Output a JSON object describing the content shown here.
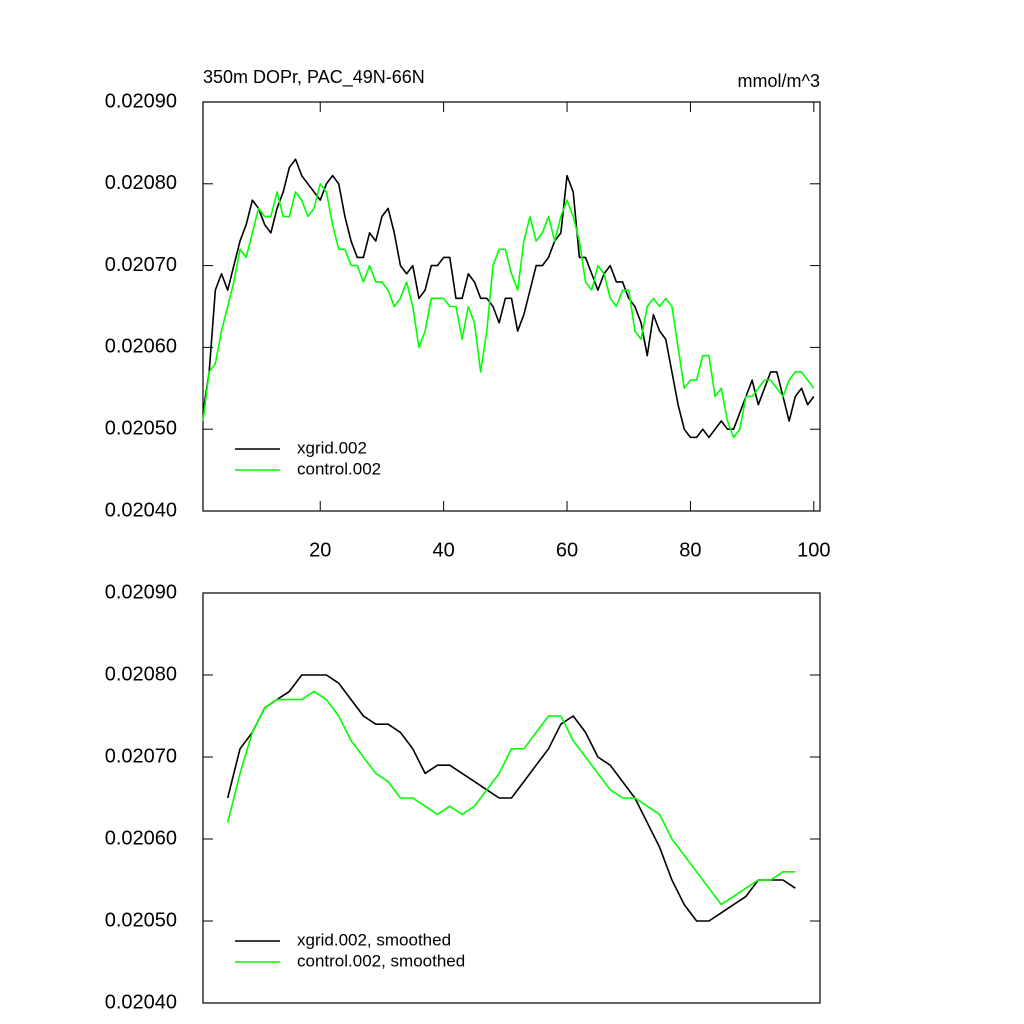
{
  "chart_data": [
    {
      "type": "line",
      "title": "350m DOPr, PAC_49N-66N",
      "units": "mmol/m^3",
      "x": [
        1,
        2,
        3,
        4,
        5,
        6,
        7,
        8,
        9,
        10,
        11,
        12,
        13,
        14,
        15,
        16,
        17,
        18,
        19,
        20,
        21,
        22,
        23,
        24,
        25,
        26,
        27,
        28,
        29,
        30,
        31,
        32,
        33,
        34,
        35,
        36,
        37,
        38,
        39,
        40,
        41,
        42,
        43,
        44,
        45,
        46,
        47,
        48,
        49,
        50,
        51,
        52,
        53,
        54,
        55,
        56,
        57,
        58,
        59,
        60,
        61,
        62,
        63,
        64,
        65,
        66,
        67,
        68,
        69,
        70,
        71,
        72,
        73,
        74,
        75,
        76,
        77,
        78,
        79,
        80,
        81,
        82,
        83,
        84,
        85,
        86,
        87,
        88,
        89,
        90,
        91,
        92,
        93,
        94,
        95,
        96,
        97,
        98,
        99,
        100
      ],
      "series": [
        {
          "name": "xgrid.002",
          "color": "#000000",
          "values": [
            0.02052,
            0.02057,
            0.02067,
            0.02069,
            0.02067,
            0.0207,
            0.02073,
            0.02075,
            0.02078,
            0.02077,
            0.02075,
            0.02074,
            0.02077,
            0.02079,
            0.02082,
            0.02083,
            0.02081,
            0.0208,
            0.02079,
            0.02078,
            0.0208,
            0.02081,
            0.0208,
            0.02076,
            0.02073,
            0.02071,
            0.02071,
            0.02074,
            0.02073,
            0.02076,
            0.02077,
            0.02074,
            0.0207,
            0.02069,
            0.0207,
            0.02066,
            0.02067,
            0.0207,
            0.0207,
            0.02071,
            0.02071,
            0.02066,
            0.02066,
            0.02069,
            0.02068,
            0.02066,
            0.02066,
            0.02065,
            0.02063,
            0.02066,
            0.02066,
            0.02062,
            0.02064,
            0.02067,
            0.0207,
            0.0207,
            0.02071,
            0.02073,
            0.02074,
            0.02081,
            0.02079,
            0.02071,
            0.02071,
            0.02069,
            0.02067,
            0.02069,
            0.0207,
            0.02068,
            0.02068,
            0.02066,
            0.02065,
            0.02063,
            0.02059,
            0.02064,
            0.02062,
            0.02061,
            0.02057,
            0.02053,
            0.0205,
            0.02049,
            0.02049,
            0.0205,
            0.02049,
            0.0205,
            0.02051,
            0.0205,
            0.0205,
            0.02052,
            0.02054,
            0.02056,
            0.02053,
            0.02055,
            0.02057,
            0.02057,
            0.02054,
            0.02051,
            0.02054,
            0.02055,
            0.02053,
            0.02054
          ]
        },
        {
          "name": "control.002",
          "color": "#00ff00",
          "values": [
            0.02051,
            0.02057,
            0.02058,
            0.02062,
            0.02065,
            0.02068,
            0.02072,
            0.02071,
            0.02074,
            0.02077,
            0.02076,
            0.02076,
            0.02079,
            0.02076,
            0.02076,
            0.02079,
            0.02078,
            0.02076,
            0.02077,
            0.0208,
            0.02079,
            0.02075,
            0.02072,
            0.02072,
            0.0207,
            0.0207,
            0.02068,
            0.0207,
            0.02068,
            0.02068,
            0.02067,
            0.02065,
            0.02066,
            0.02068,
            0.02065,
            0.0206,
            0.02062,
            0.02066,
            0.02066,
            0.02066,
            0.02065,
            0.02065,
            0.02061,
            0.02065,
            0.02063,
            0.02057,
            0.02062,
            0.0207,
            0.02072,
            0.02072,
            0.02069,
            0.02067,
            0.02073,
            0.02076,
            0.02073,
            0.02074,
            0.02076,
            0.02073,
            0.02076,
            0.02078,
            0.02076,
            0.02073,
            0.02068,
            0.02067,
            0.0207,
            0.02069,
            0.02066,
            0.02065,
            0.02067,
            0.02067,
            0.02062,
            0.02061,
            0.02065,
            0.02066,
            0.02065,
            0.02066,
            0.02065,
            0.0206,
            0.02055,
            0.02056,
            0.02056,
            0.02059,
            0.02059,
            0.02054,
            0.02055,
            0.02051,
            0.02049,
            0.0205,
            0.02054,
            0.02054,
            0.02055,
            0.02056,
            0.02056,
            0.02055,
            0.02054,
            0.02056,
            0.02057,
            0.02057,
            0.02056,
            0.02055
          ]
        }
      ],
      "xlim": [
        1,
        101
      ],
      "ylim": [
        0.0204,
        0.0209
      ],
      "xticks": [
        20,
        40,
        60,
        80,
        100
      ],
      "yticks": [
        {
          "value": 0.0204,
          "label": "0.02040"
        },
        {
          "value": 0.0205,
          "label": "0.02050"
        },
        {
          "value": 0.0206,
          "label": "0.02060"
        },
        {
          "value": 0.0207,
          "label": "0.02070"
        },
        {
          "value": 0.0208,
          "label": "0.02080"
        },
        {
          "value": 0.0209,
          "label": "0.02090"
        }
      ],
      "legend": "lower left"
    },
    {
      "type": "line",
      "x": [
        5,
        7,
        9,
        11,
        13,
        15,
        17,
        19,
        21,
        23,
        25,
        27,
        29,
        31,
        33,
        35,
        37,
        39,
        41,
        43,
        45,
        47,
        49,
        51,
        53,
        55,
        57,
        59,
        61,
        63,
        65,
        67,
        69,
        71,
        73,
        75,
        77,
        79,
        81,
        83,
        85,
        87,
        89,
        91,
        93,
        95,
        97
      ],
      "series": [
        {
          "name": "xgrid.002, smoothed",
          "color": "#000000",
          "values": [
            0.02065,
            0.02071,
            0.02073,
            0.02076,
            0.02077,
            0.02078,
            0.0208,
            0.0208,
            0.0208,
            0.02079,
            0.02077,
            0.02075,
            0.02074,
            0.02074,
            0.02073,
            0.02071,
            0.02068,
            0.02069,
            0.02069,
            0.02068,
            0.02067,
            0.02066,
            0.02065,
            0.02065,
            0.02067,
            0.02069,
            0.02071,
            0.02074,
            0.02075,
            0.02073,
            0.0207,
            0.02069,
            0.02067,
            0.02065,
            0.02062,
            0.02059,
            0.02055,
            0.02052,
            0.0205,
            0.0205,
            0.02051,
            0.02052,
            0.02053,
            0.02055,
            0.02055,
            0.02055,
            0.02054
          ]
        },
        {
          "name": "control.002, smoothed",
          "color": "#00ff00",
          "values": [
            0.02062,
            0.02068,
            0.02073,
            0.02076,
            0.02077,
            0.02077,
            0.02077,
            0.02078,
            0.02077,
            0.02075,
            0.02072,
            0.0207,
            0.02068,
            0.02067,
            0.02065,
            0.02065,
            0.02064,
            0.02063,
            0.02064,
            0.02063,
            0.02064,
            0.02066,
            0.02068,
            0.02071,
            0.02071,
            0.02073,
            0.02075,
            0.02075,
            0.02072,
            0.0207,
            0.02068,
            0.02066,
            0.02065,
            0.02065,
            0.02064,
            0.02063,
            0.0206,
            0.02058,
            0.02056,
            0.02054,
            0.02052,
            0.02053,
            0.02054,
            0.02055,
            0.02055,
            0.02056,
            0.02056
          ]
        }
      ],
      "xlim": [
        1,
        101
      ],
      "ylim": [
        0.0204,
        0.0209
      ],
      "yticks": [
        {
          "value": 0.0204,
          "label": "0.02040"
        },
        {
          "value": 0.0205,
          "label": "0.02050"
        },
        {
          "value": 0.0206,
          "label": "0.02060"
        },
        {
          "value": 0.0207,
          "label": "0.02070"
        },
        {
          "value": 0.0208,
          "label": "0.02080"
        },
        {
          "value": 0.0209,
          "label": "0.02090"
        }
      ],
      "legend": "lower left"
    }
  ]
}
